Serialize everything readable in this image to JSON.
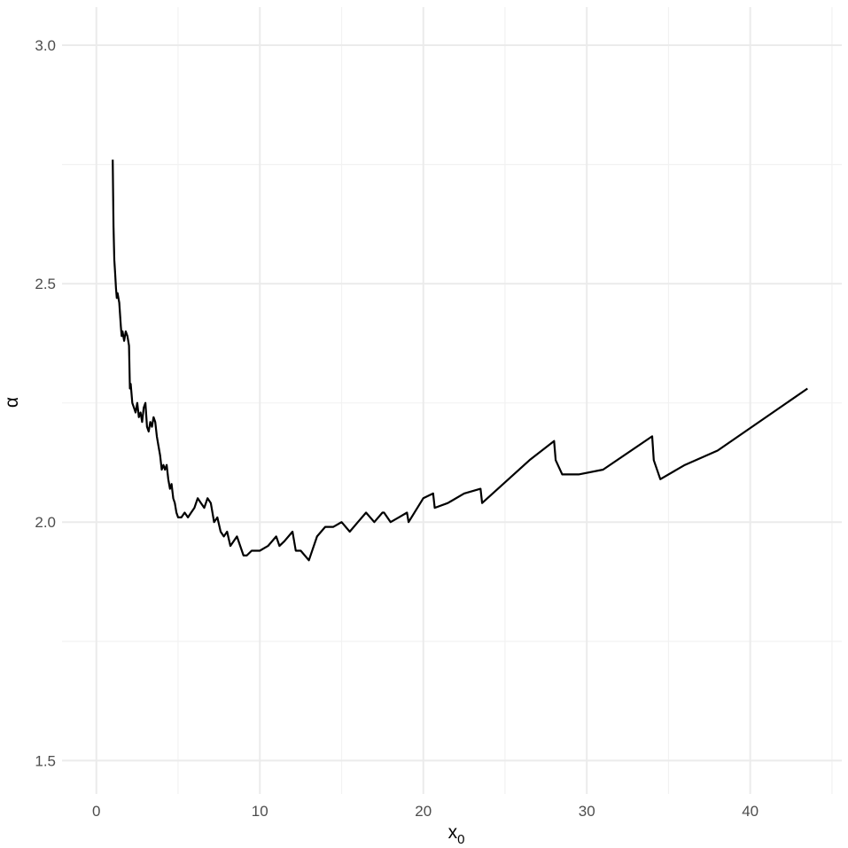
{
  "chart_data": {
    "type": "line",
    "title": "",
    "xlabel": "x",
    "xlabel_subscript": "0",
    "ylabel": "α",
    "xlim": [
      -2.1,
      45.6
    ],
    "ylim": [
      1.43,
      3.08
    ],
    "x_ticks": [
      0,
      10,
      20,
      30,
      40
    ],
    "x_tick_labels": [
      "0",
      "10",
      "20",
      "30",
      "40"
    ],
    "y_ticks": [
      1.5,
      2.0,
      2.5,
      3.0
    ],
    "y_tick_labels": [
      "1.5",
      "2.0",
      "2.5",
      "3.0"
    ],
    "grid": true,
    "legend": "none",
    "series": [
      {
        "color": "#000000",
        "x": [
          1.0,
          1.05,
          1.1,
          1.15,
          1.2,
          1.25,
          1.3,
          1.4,
          1.5,
          1.55,
          1.6,
          1.7,
          1.8,
          1.9,
          2.0,
          2.05,
          2.1,
          2.15,
          2.2,
          2.3,
          2.4,
          2.5,
          2.6,
          2.7,
          2.8,
          2.9,
          3.0,
          3.1,
          3.2,
          3.3,
          3.4,
          3.5,
          3.6,
          3.7,
          3.8,
          3.9,
          4.0,
          4.1,
          4.2,
          4.3,
          4.4,
          4.5,
          4.6,
          4.7,
          4.8,
          4.9,
          5.0,
          5.2,
          5.4,
          5.6,
          5.8,
          6.0,
          6.2,
          6.4,
          6.6,
          6.8,
          7.0,
          7.2,
          7.4,
          7.6,
          7.8,
          8.0,
          8.2,
          8.4,
          8.6,
          8.8,
          9.0,
          9.2,
          9.5,
          10.0,
          10.5,
          11.0,
          11.2,
          11.5,
          12.0,
          12.2,
          12.5,
          13.0,
          13.5,
          14.0,
          14.5,
          15.0,
          15.5,
          16.0,
          16.5,
          17.0,
          17.5,
          17.6,
          18.0,
          18.5,
          19.0,
          19.1,
          20.0,
          20.6,
          20.7,
          21.5,
          22.5,
          23.5,
          23.6,
          26.5,
          28.0,
          28.1,
          28.5,
          29.5,
          31.0,
          34.0,
          34.1,
          34.5,
          36.0,
          38.0,
          43.5
        ],
        "values": [
          2.76,
          2.62,
          2.55,
          2.52,
          2.49,
          2.47,
          2.48,
          2.46,
          2.41,
          2.39,
          2.4,
          2.38,
          2.4,
          2.39,
          2.37,
          2.28,
          2.29,
          2.27,
          2.25,
          2.24,
          2.23,
          2.25,
          2.22,
          2.23,
          2.21,
          2.24,
          2.25,
          2.2,
          2.19,
          2.21,
          2.2,
          2.22,
          2.21,
          2.18,
          2.16,
          2.14,
          2.11,
          2.12,
          2.11,
          2.12,
          2.09,
          2.07,
          2.08,
          2.05,
          2.04,
          2.02,
          2.01,
          2.01,
          2.02,
          2.01,
          2.02,
          2.03,
          2.05,
          2.04,
          2.03,
          2.05,
          2.04,
          2.0,
          2.01,
          1.98,
          1.97,
          1.98,
          1.95,
          1.96,
          1.97,
          1.95,
          1.93,
          1.93,
          1.94,
          1.94,
          1.95,
          1.97,
          1.95,
          1.96,
          1.98,
          1.94,
          1.94,
          1.92,
          1.97,
          1.99,
          1.99,
          2.0,
          1.98,
          2.0,
          2.02,
          2.0,
          2.02,
          2.02,
          2.0,
          2.01,
          2.02,
          2.0,
          2.05,
          2.06,
          2.03,
          2.04,
          2.06,
          2.07,
          2.04,
          2.13,
          2.17,
          2.13,
          2.1,
          2.1,
          2.11,
          2.18,
          2.13,
          2.09,
          2.12,
          2.15,
          2.28
        ]
      }
    ]
  }
}
